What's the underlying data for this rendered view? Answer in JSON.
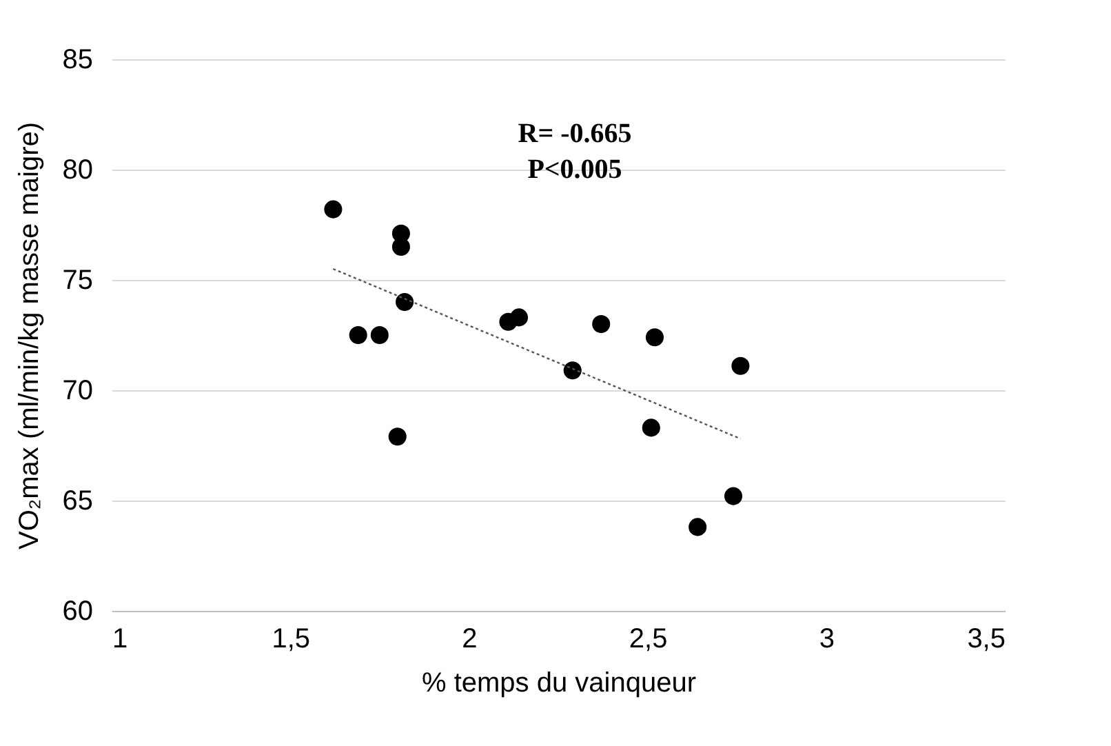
{
  "chart_data": {
    "type": "scatter",
    "xlabel": "% temps du vainqueur",
    "ylabel": "VO₂max (ml/min/kg masse maigre)",
    "xlim": [
      1,
      3.5
    ],
    "xticks": [
      1,
      {
        "value": 1.5,
        "label": "1,5"
      },
      2,
      {
        "value": 2.5,
        "label": "2,5"
      },
      3,
      {
        "value": 3.5,
        "label": "3,5"
      }
    ],
    "ylim": [
      60,
      85
    ],
    "yticks": [
      60,
      65,
      70,
      75,
      80,
      85
    ],
    "grid": "y",
    "annotations": [
      "R= -0.665",
      "P<0.005"
    ],
    "series": [
      {
        "marker": "circle",
        "color": "#000000",
        "x": [
          1.62,
          1.81,
          1.81,
          1.82,
          1.69,
          1.75,
          1.8,
          2.11,
          2.14,
          2.37,
          2.29,
          2.52,
          2.51,
          2.76,
          2.74,
          2.64
        ],
        "values": [
          78.2,
          77.1,
          76.5,
          74.0,
          72.5,
          72.5,
          67.9,
          73.1,
          73.3,
          73.0,
          70.9,
          72.4,
          68.3,
          71.1,
          65.2,
          63.8
        ]
      },
      {
        "type": "line",
        "color": "#555555",
        "line_style": "dotted",
        "x": [
          1.62,
          2.76
        ],
        "values": [
          75.5,
          67.8
        ]
      }
    ]
  }
}
